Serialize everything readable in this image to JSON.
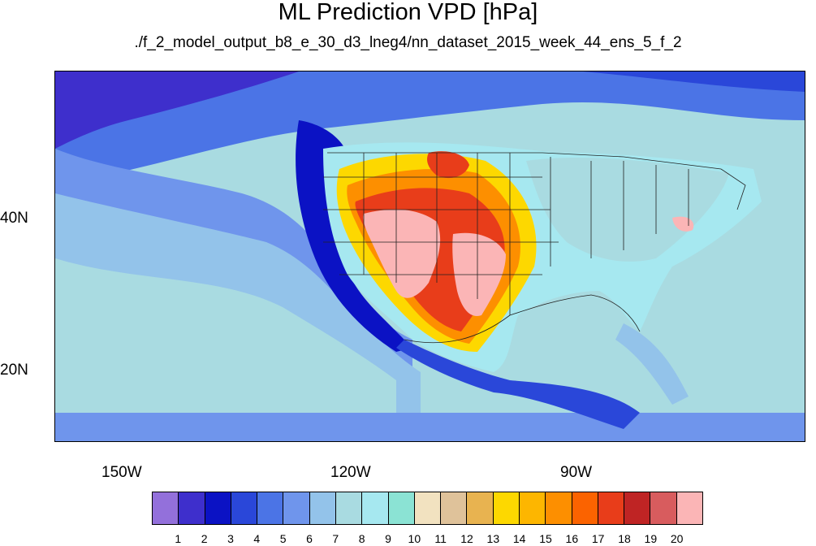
{
  "title": "ML Prediction VPD [hPa]",
  "subtitle": "./f_2_model_output_b8_e_30_d3_lneg4/nn_dataset_2015_week_44_ens_5_f_2",
  "axes": {
    "lon_labels": [
      "150W",
      "120W",
      "90W"
    ],
    "lat_labels": [
      "40N",
      "20N"
    ]
  },
  "colorbar": {
    "labels": [
      "1",
      "2",
      "3",
      "4",
      "5",
      "6",
      "7",
      "8",
      "9",
      "10",
      "11",
      "12",
      "13",
      "14",
      "15",
      "16",
      "17",
      "18",
      "19",
      "20"
    ],
    "colors": [
      "#9370db",
      "#3e2fcc",
      "#0b12c4",
      "#2a47d9",
      "#4b74e6",
      "#6f95ec",
      "#93c3ea",
      "#a9dbe1",
      "#a6e8f0",
      "#8be3d4",
      "#f2e2c0",
      "#dfc29a",
      "#e8b350",
      "#fdd800",
      "#fdb600",
      "#fd8f00",
      "#fb6300",
      "#e83d1a",
      "#bf2424",
      "#d85c5e",
      "#fbb5b6"
    ]
  }
}
